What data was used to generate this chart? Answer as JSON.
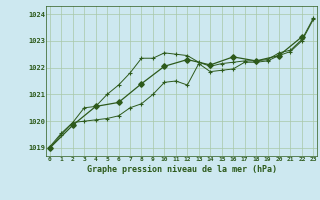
{
  "title": "Graphe pression niveau de la mer (hPa)",
  "background_color": "#cde8f0",
  "grid_color": "#a8c8a8",
  "line_color": "#2d5a1b",
  "ylim": [
    1018.7,
    1024.3
  ],
  "yticks": [
    1019,
    1020,
    1021,
    1022,
    1023,
    1024
  ],
  "line1_x": [
    0,
    1,
    2,
    3,
    4,
    5,
    6,
    7,
    8,
    9,
    10,
    11,
    12,
    13,
    14,
    15,
    16,
    17,
    18,
    19,
    20,
    21,
    22,
    23
  ],
  "line1_y": [
    1019.05,
    1019.55,
    1019.95,
    1020.5,
    1020.55,
    1021.0,
    1021.35,
    1021.8,
    1022.35,
    1022.35,
    1022.55,
    1022.5,
    1022.45,
    1022.2,
    1022.05,
    1022.15,
    1022.2,
    1022.25,
    1022.25,
    1022.3,
    1022.55,
    1022.65,
    1023.05,
    1023.85
  ],
  "line2_x": [
    0,
    1,
    2,
    3,
    4,
    5,
    6,
    7,
    8,
    9,
    10,
    11,
    12,
    13,
    14,
    15,
    16,
    17,
    18,
    19,
    20,
    21,
    22,
    23
  ],
  "line2_y": [
    1019.0,
    1019.5,
    1019.95,
    1020.0,
    1020.05,
    1020.1,
    1020.2,
    1020.5,
    1020.65,
    1021.0,
    1021.45,
    1021.5,
    1021.35,
    1022.15,
    1021.85,
    1021.9,
    1021.95,
    1022.2,
    1022.2,
    1022.25,
    1022.45,
    1022.6,
    1023.0,
    1023.8
  ],
  "line3_x": [
    0,
    2,
    4,
    6,
    8,
    10,
    12,
    14,
    16,
    18,
    20,
    22
  ],
  "line3_y": [
    1019.0,
    1019.85,
    1020.55,
    1020.7,
    1021.4,
    1022.05,
    1022.3,
    1022.1,
    1022.4,
    1022.25,
    1022.45,
    1023.15
  ]
}
